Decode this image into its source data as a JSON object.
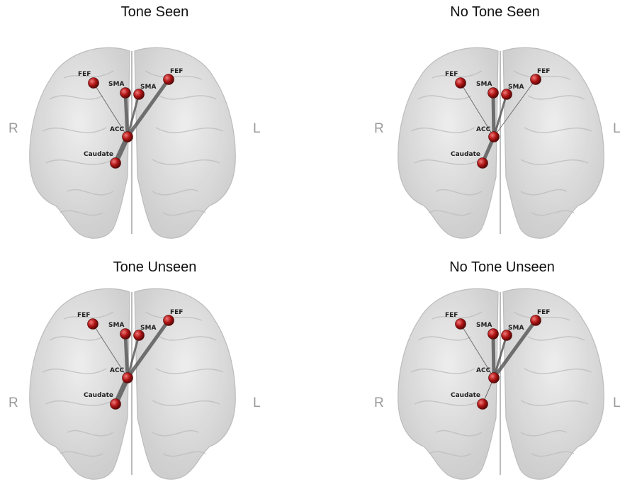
{
  "side_labels": {
    "right": "R",
    "left": "L"
  },
  "colors": {
    "node": "#b01515",
    "edge": "#5c5c5c",
    "brain_fill": "#d6d6d6",
    "side_label": "#9a9a9a"
  },
  "node_labels": {
    "fef_right": "FEF",
    "fef_left": "FEF",
    "sma_right": "SMA",
    "sma_left": "SMA",
    "acc": "ACC",
    "caudate": "Caudate"
  },
  "panels": [
    {
      "title": "Tone Seen",
      "edges": {
        "fefR_acc": 1,
        "smaR_acc": 5,
        "smaL_acc": 3,
        "fefL_acc": 5,
        "caud_acc": 7
      }
    },
    {
      "title": "No Tone Seen",
      "edges": {
        "fefR_acc": 1,
        "smaR_acc": 5,
        "smaL_acc": 3,
        "fefL_acc": 1,
        "caud_acc": 5
      }
    },
    {
      "title": "Tone Unseen",
      "edges": {
        "fefR_acc": 1,
        "smaR_acc": 5,
        "smaL_acc": 3,
        "fefL_acc": 5,
        "caud_acc": 7
      }
    },
    {
      "title": "No Tone Unseen",
      "edges": {
        "fefR_acc": 1,
        "smaR_acc": 5,
        "smaL_acc": 3,
        "fefL_acc": 5,
        "caud_acc": 1
      }
    }
  ]
}
